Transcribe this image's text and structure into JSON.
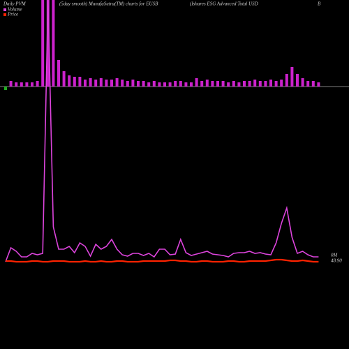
{
  "chart_data": {
    "type": "pvm",
    "title": "Daily PVM",
    "subtitle": "(5day smooth) MunafaSutra(TM) charts for EUSB",
    "name": "(Ishares ESG Advanced Total USD",
    "name_end": "B",
    "bars": {
      "color_up": "#cc22cc",
      "color_down": "#22aa22",
      "ylim": [
        0,
        124
      ],
      "values": [
        -5,
        8,
        6,
        6,
        6,
        6,
        8,
        124,
        124,
        124,
        38,
        22,
        16,
        14,
        14,
        10,
        12,
        10,
        12,
        10,
        10,
        12,
        10,
        8,
        10,
        8,
        8,
        6,
        8,
        6,
        6,
        6,
        8,
        8,
        6,
        6,
        12,
        8,
        10,
        8,
        8,
        8,
        6,
        8,
        6,
        8,
        8,
        10,
        8,
        8,
        10,
        8,
        10,
        18,
        28,
        18,
        12,
        8,
        8,
        6
      ]
    },
    "ylim": [
      0,
      378
    ],
    "series": [
      {
        "name": "Volume",
        "color": "#dd44dd",
        "values": [
          3,
          23,
          18,
          10,
          10,
          15,
          13,
          15,
          378,
          53,
          21,
          21,
          25,
          16,
          30,
          25,
          11,
          28,
          21,
          25,
          35,
          21,
          13,
          11,
          15,
          15,
          12,
          15,
          10,
          21,
          21,
          13,
          14,
          35,
          16,
          12,
          14,
          16,
          18,
          14,
          13,
          12,
          10,
          15,
          16,
          16,
          18,
          15,
          16,
          14,
          13,
          30,
          58,
          80,
          38,
          15,
          18,
          13,
          10,
          10
        ]
      },
      {
        "name": "Price",
        "color": "#ff2200",
        "values": [
          4,
          4,
          3,
          3,
          3,
          4,
          4,
          3,
          3,
          4,
          4,
          4,
          3,
          3,
          3,
          4,
          3,
          3,
          4,
          3,
          3,
          4,
          4,
          3,
          3,
          3,
          4,
          4,
          4,
          4,
          4,
          5,
          5,
          4,
          4,
          3,
          3,
          4,
          4,
          3,
          3,
          3,
          4,
          4,
          3,
          3,
          4,
          4,
          4,
          4,
          5,
          6,
          6,
          5,
          4,
          4,
          5,
          4,
          3,
          3
        ]
      }
    ],
    "label_volume": "0M",
    "label_price": "48.90"
  }
}
